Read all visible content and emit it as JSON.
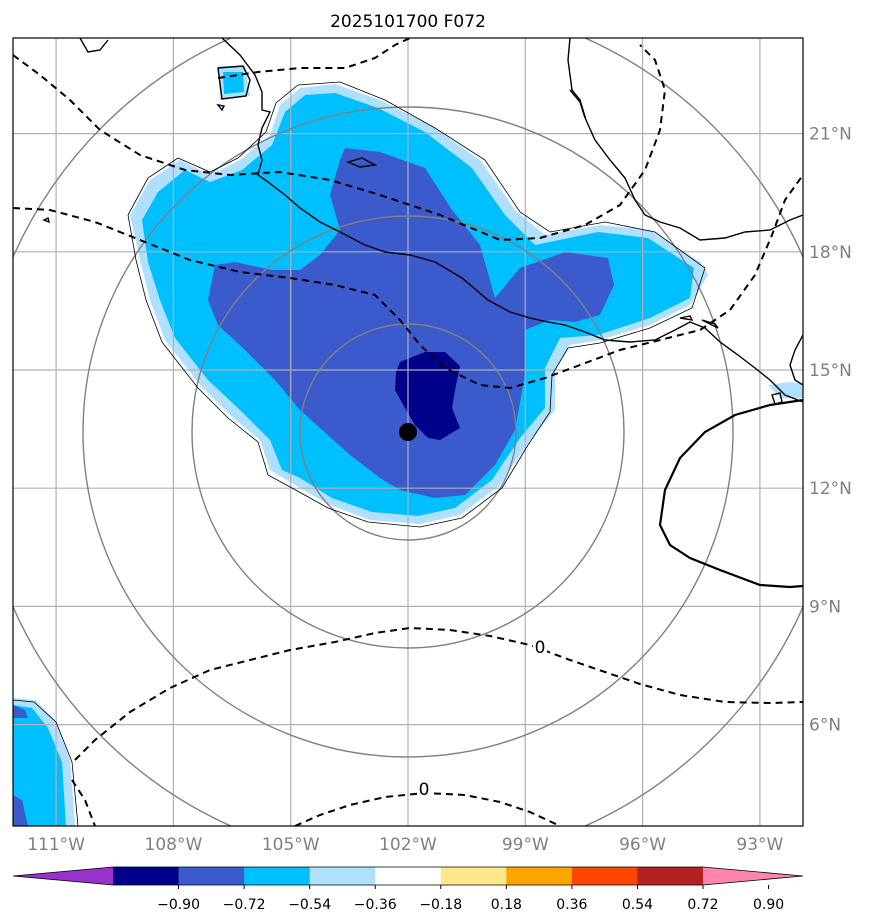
{
  "chart_data": {
    "type": "contour-map",
    "title": "2025101700 F072",
    "x_ticks": [
      "111°W",
      "108°W",
      "105°W",
      "102°W",
      "99°W",
      "96°W",
      "93°W"
    ],
    "x_tick_values": [
      -111,
      -108,
      -105,
      -102,
      -99,
      -96,
      -93
    ],
    "y_ticks": [
      "21°N",
      "18°N",
      "15°N",
      "12°N",
      "9°N",
      "6°N"
    ],
    "y_tick_values": [
      21,
      18,
      15,
      12,
      9,
      6
    ],
    "lon_range": [
      -112.0,
      -92.0
    ],
    "lat_range": [
      3.0,
      23.0
    ],
    "grid": true,
    "center_marker": {
      "lon": -101.8,
      "lat": 13.4
    },
    "range_rings_center": {
      "lon": -102.0,
      "lat": 13.4
    },
    "contour_labels": [
      "0",
      "0"
    ],
    "colorbar": {
      "orientation": "horizontal",
      "extend": "both",
      "levels": [
        -0.9,
        -0.72,
        -0.54,
        -0.36,
        -0.18,
        0.18,
        0.36,
        0.54,
        0.72,
        0.9
      ],
      "tick_labels": [
        "−0.90",
        "−0.72",
        "−0.54",
        "−0.36",
        "−0.18",
        "0.18",
        "0.36",
        "0.54",
        "0.72",
        "0.90"
      ],
      "colors": [
        "#9932cc",
        "#00008b",
        "#3b5bcd",
        "#00bfff",
        "#b0e0ff",
        "#ffffff",
        "#ffe88a",
        "#ffa500",
        "#ff4500",
        "#b22222",
        "#ff85b0"
      ]
    },
    "shading": {
      "light_blue": "#b0e0ff",
      "sky_blue": "#00bfff",
      "royal_blue": "#3b5bcd",
      "navy": "#00008b"
    }
  }
}
